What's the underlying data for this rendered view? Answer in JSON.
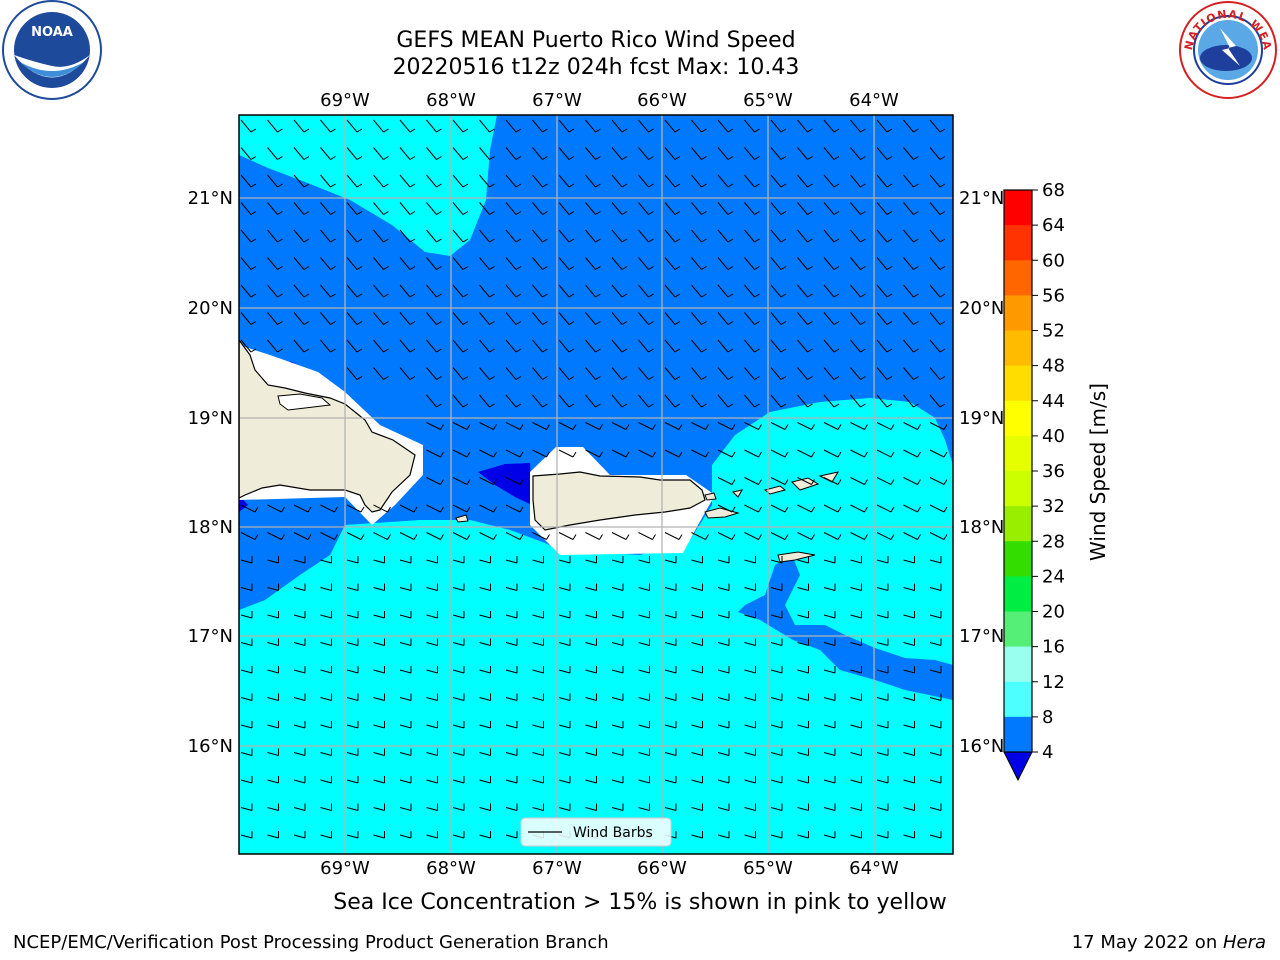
{
  "title": {
    "line1": "GEFS MEAN Puerto Rico Wind Speed",
    "line2": "20220516 t12z 024h fcst   Max: 10.43"
  },
  "logos": {
    "left": {
      "name": "noaa-logo",
      "text": "NOAA",
      "ring_text": "NATIONAL OCEANIC AND ATMOSPHERIC ADMINISTRATION · U.S. DEPARTMENT OF COMMERCE",
      "color": "#1e4a9c"
    },
    "right": {
      "name": "nws-logo",
      "ring_text": "NATIONAL WEATHER SERVICE",
      "color": "#d42020"
    }
  },
  "map": {
    "lon_labels": [
      "69°W",
      "68°W",
      "67°W",
      "66°W",
      "65°W",
      "64°W"
    ],
    "lat_labels": [
      "21°N",
      "20°N",
      "19°N",
      "18°N",
      "17°N",
      "16°N"
    ],
    "colors": {
      "land": "#efedd9",
      "speed_4_8": "#0079ff",
      "speed_8_12": "#00ffff",
      "speed_below_4": "#0000e6",
      "speed_12_16": "#4dffff",
      "grid": "#b3b3b3"
    },
    "legend_label": "Wind Barbs"
  },
  "colorbar": {
    "label": "Wind Speed [m/s]",
    "ticks": [
      "68",
      "64",
      "60",
      "56",
      "52",
      "48",
      "44",
      "40",
      "36",
      "32",
      "28",
      "24",
      "20",
      "16",
      "12",
      "8",
      "4"
    ],
    "colors_top_to_bottom": [
      "#ff0000",
      "#ff3300",
      "#ff6600",
      "#ff9900",
      "#ffbb00",
      "#ffdd00",
      "#ffff00",
      "#e6ff00",
      "#ccff00",
      "#99ee00",
      "#33dd00",
      "#00ee44",
      "#55ee77",
      "#99ffee",
      "#4dffff",
      "#00ffff",
      "#0079ff"
    ],
    "under_color": "#0000e6"
  },
  "caption": "Sea Ice Concentration > 15% is shown in pink to yellow",
  "footer": {
    "left": "NCEP/EMC/Verification Post Processing Product Generation Branch",
    "right_date": "17 May 2022 on ",
    "right_host": "Hera"
  }
}
